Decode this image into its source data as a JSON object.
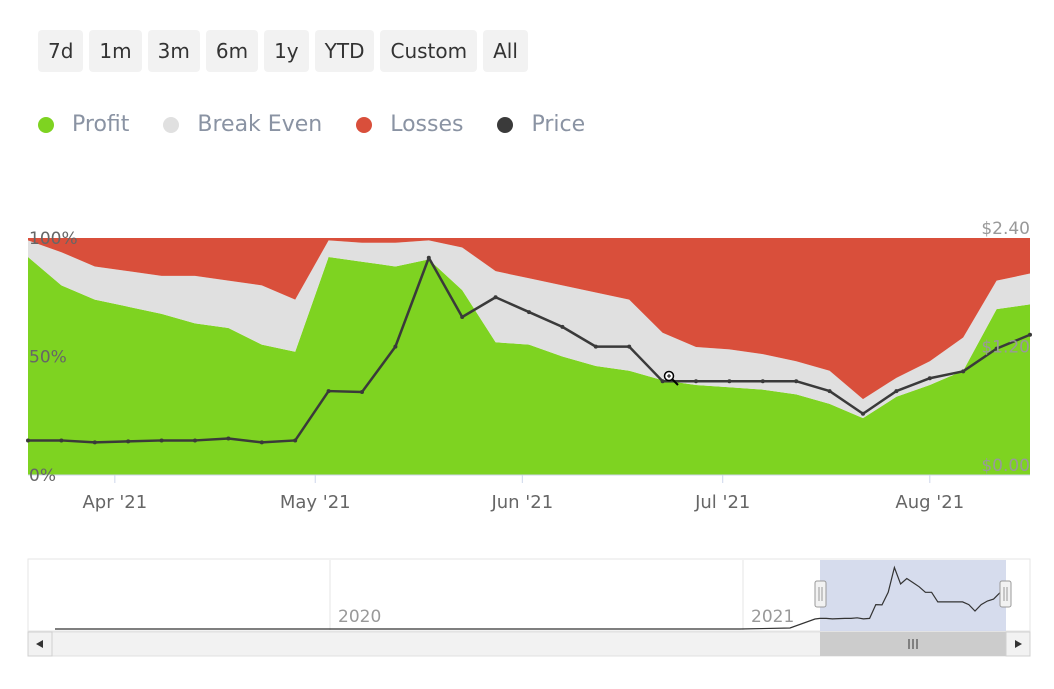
{
  "range_selector": {
    "buttons": [
      {
        "id": "7d",
        "label": "7d"
      },
      {
        "id": "1m",
        "label": "1m"
      },
      {
        "id": "3m",
        "label": "3m"
      },
      {
        "id": "6m",
        "label": "6m"
      },
      {
        "id": "1y",
        "label": "1y"
      },
      {
        "id": "ytd",
        "label": "YTD"
      },
      {
        "id": "custom",
        "label": "Custom"
      },
      {
        "id": "all",
        "label": "All"
      }
    ]
  },
  "colors": {
    "profit": "#7ed321",
    "break_even": "#e0e0e0",
    "losses": "#d94f3b",
    "price": "#3a3a3a",
    "navigator_mask": "#cfd6ea"
  },
  "chart_data": {
    "type": "area",
    "title": "",
    "legend": {
      "placement": "top-left",
      "items": [
        {
          "key": "profit",
          "label": "Profit",
          "color": "#7ed321"
        },
        {
          "key": "break_even",
          "label": "Break Even",
          "color": "#e0e0e0"
        },
        {
          "key": "losses",
          "label": "Losses",
          "color": "#d94f3b"
        },
        {
          "key": "price",
          "label": "Price",
          "color": "#3a3a3a"
        }
      ]
    },
    "x_axis": {
      "start": "2021-03-19",
      "end": "2021-08-16",
      "ticks": [
        {
          "date": "2021-04-01",
          "label": "Apr '21"
        },
        {
          "date": "2021-05-01",
          "label": "May '21"
        },
        {
          "date": "2021-06-01",
          "label": "Jun '21"
        },
        {
          "date": "2021-07-01",
          "label": "Jul '21"
        },
        {
          "date": "2021-08-01",
          "label": "Aug '21"
        }
      ]
    },
    "y_left": {
      "min": 0,
      "max": 100,
      "ticks": [
        {
          "v": 0,
          "label": "0%"
        },
        {
          "v": 50,
          "label": "50%"
        },
        {
          "v": 100,
          "label": "100%"
        }
      ]
    },
    "y_right": {
      "min": 0,
      "max": 2.4,
      "ticks": [
        {
          "v": 0,
          "label": "$0.00"
        },
        {
          "v": 1.2,
          "label": "$1.20"
        },
        {
          "v": 2.4,
          "label": "$2.40"
        }
      ]
    },
    "grid": false,
    "dates": [
      "2021-03-19",
      "2021-03-24",
      "2021-03-29",
      "2021-04-03",
      "2021-04-08",
      "2021-04-13",
      "2021-04-18",
      "2021-04-23",
      "2021-04-28",
      "2021-05-03",
      "2021-05-08",
      "2021-05-13",
      "2021-05-18",
      "2021-05-23",
      "2021-05-28",
      "2021-06-02",
      "2021-06-07",
      "2021-06-12",
      "2021-06-17",
      "2021-06-22",
      "2021-06-27",
      "2021-07-02",
      "2021-07-07",
      "2021-07-12",
      "2021-07-17",
      "2021-07-22",
      "2021-07-27",
      "2021-08-01",
      "2021-08-06",
      "2021-08-11",
      "2021-08-16"
    ],
    "series": [
      {
        "name": "Profit",
        "key": "profit",
        "values": [
          92,
          80,
          74,
          71,
          68,
          64,
          62,
          55,
          52,
          92,
          90,
          88,
          91,
          78,
          56,
          55,
          50,
          46,
          44,
          40,
          38,
          37,
          36,
          34,
          30,
          24,
          33,
          38,
          44,
          70,
          72
        ]
      },
      {
        "name": "Break Even",
        "key": "break_even",
        "values": [
          7,
          14,
          14,
          15,
          16,
          20,
          20,
          25,
          22,
          7,
          8,
          10,
          8,
          18,
          30,
          28,
          30,
          31,
          30,
          20,
          16,
          16,
          15,
          14,
          14,
          8,
          8,
          10,
          14,
          12,
          13
        ]
      },
      {
        "name": "Losses",
        "key": "losses",
        "values": [
          1,
          6,
          12,
          14,
          16,
          16,
          18,
          20,
          26,
          1,
          2,
          2,
          1,
          4,
          14,
          17,
          20,
          23,
          26,
          40,
          46,
          47,
          49,
          52,
          56,
          68,
          59,
          52,
          42,
          18,
          15
        ]
      },
      {
        "name": "Price",
        "key": "price",
        "values": [
          0.35,
          0.35,
          0.33,
          0.34,
          0.35,
          0.35,
          0.37,
          0.33,
          0.35,
          0.85,
          0.84,
          1.3,
          2.2,
          1.6,
          1.8,
          1.65,
          1.5,
          1.3,
          1.3,
          0.95,
          0.95,
          0.95,
          0.95,
          0.95,
          0.85,
          0.62,
          0.85,
          0.98,
          1.05,
          1.28,
          1.42
        ]
      }
    ]
  },
  "navigator": {
    "labels": [
      "2020",
      "2021"
    ]
  }
}
